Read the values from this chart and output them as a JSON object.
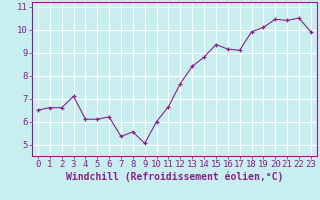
{
  "x": [
    0,
    1,
    2,
    3,
    4,
    5,
    6,
    7,
    8,
    9,
    10,
    11,
    12,
    13,
    14,
    15,
    16,
    17,
    18,
    19,
    20,
    21,
    22,
    23
  ],
  "y": [
    6.5,
    6.6,
    6.6,
    7.1,
    6.1,
    6.1,
    6.2,
    5.35,
    5.55,
    5.05,
    6.0,
    6.65,
    7.65,
    8.4,
    8.8,
    9.35,
    9.15,
    9.1,
    9.9,
    10.1,
    10.45,
    10.4,
    10.5,
    9.9
  ],
  "line_color": "#882288",
  "marker": "+",
  "bg_color": "#c8eef0",
  "grid_color": "#ffffff",
  "axis_color": "#882288",
  "xlabel": "Windchill (Refroidissement éolien,°C)",
  "xlim": [
    -0.5,
    23.5
  ],
  "ylim": [
    4.5,
    11.2
  ],
  "yticks": [
    5,
    6,
    7,
    8,
    9,
    10,
    11
  ],
  "xticks": [
    0,
    1,
    2,
    3,
    4,
    5,
    6,
    7,
    8,
    9,
    10,
    11,
    12,
    13,
    14,
    15,
    16,
    17,
    18,
    19,
    20,
    21,
    22,
    23
  ],
  "font_color": "#882288",
  "fontsize": 6.5,
  "xlabel_fontsize": 7.0
}
